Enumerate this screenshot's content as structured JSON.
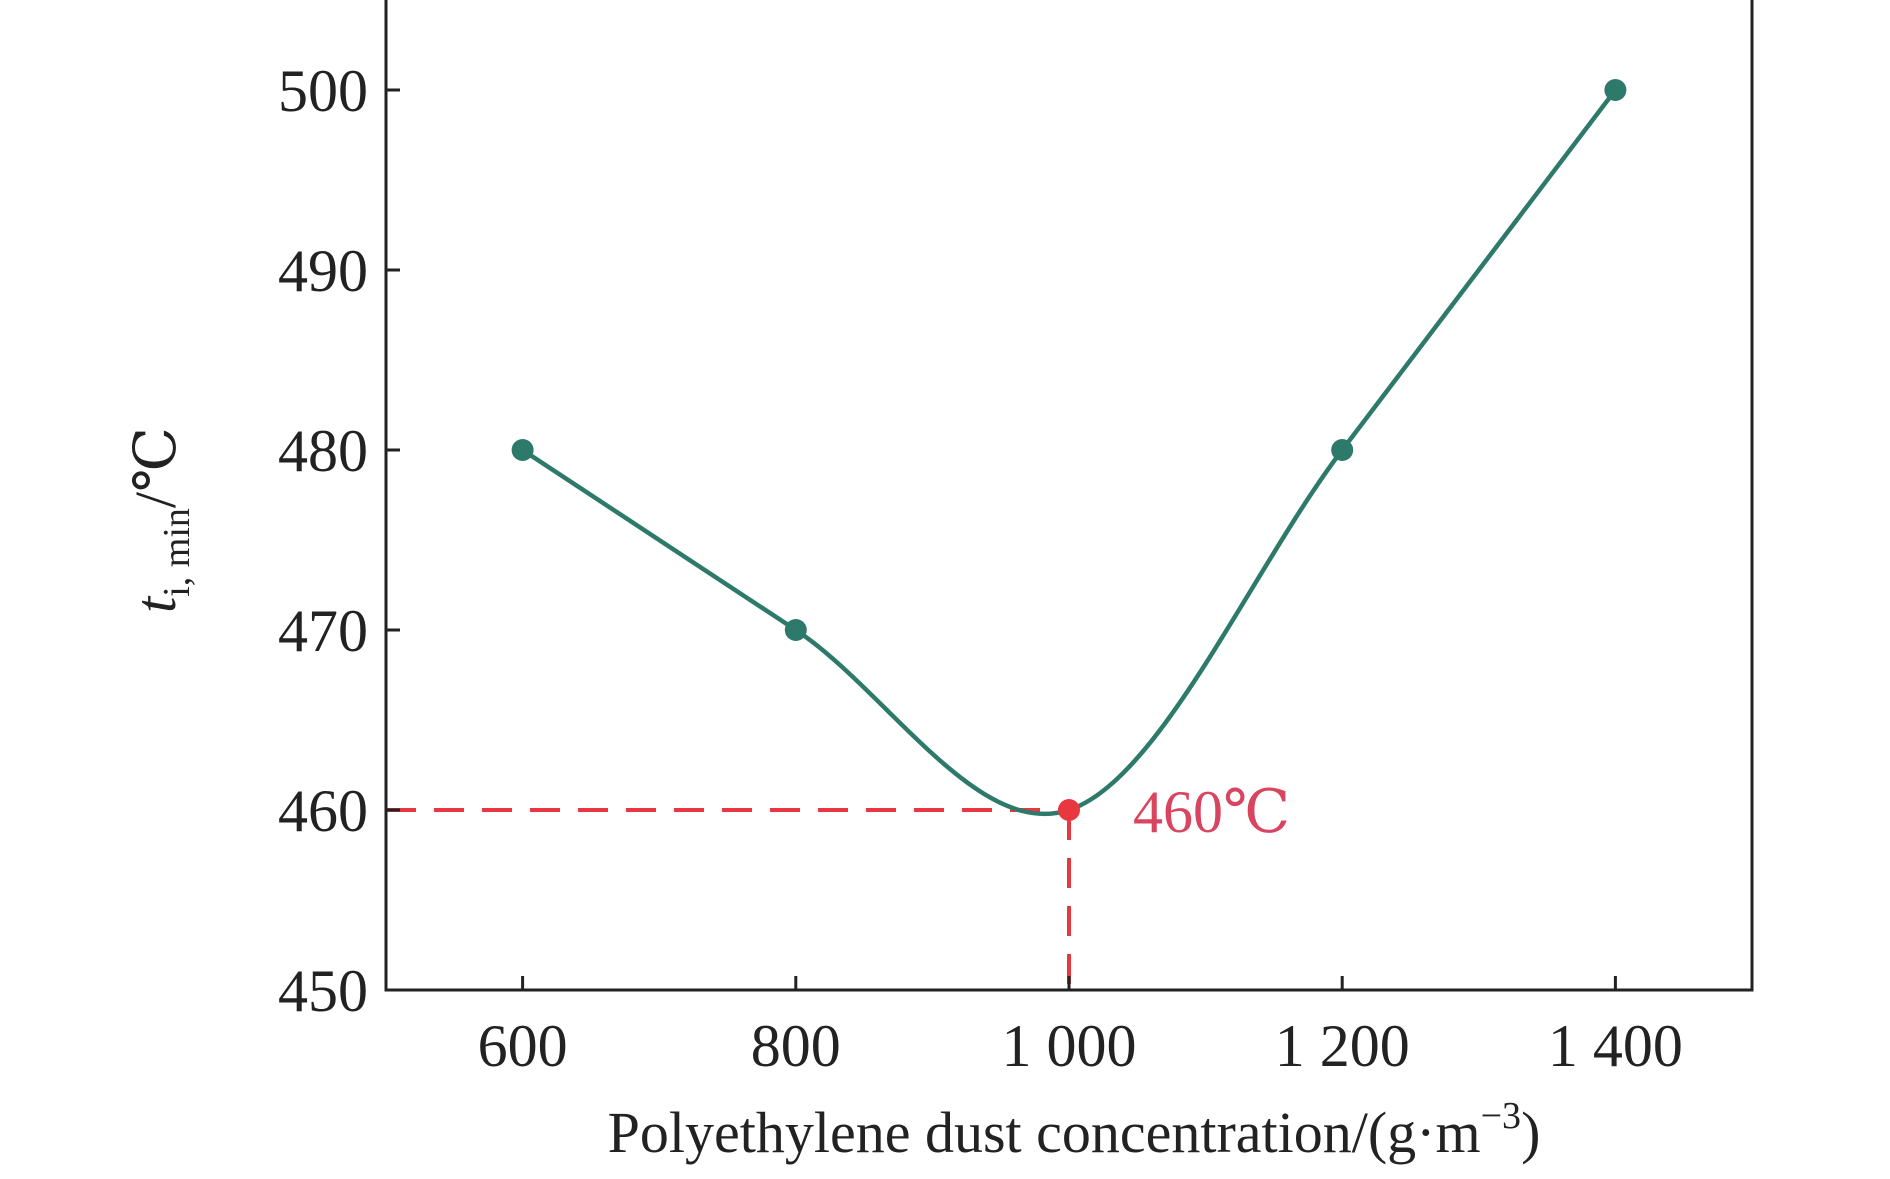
{
  "chart_data": {
    "type": "line",
    "x": [
      600,
      800,
      1000,
      1200,
      1400
    ],
    "series": [
      {
        "values": [
          480,
          470,
          460,
          480,
          500
        ],
        "color": "#2e7a6a",
        "marker": "circle"
      }
    ],
    "highlight": {
      "x": 1000,
      "y": 460,
      "label": "460℃",
      "color": "#e8373f",
      "guides": "dashed"
    },
    "xlim": [
      500,
      1500
    ],
    "ylim": [
      450,
      505
    ],
    "xticks": [
      600,
      800,
      1000,
      1200,
      1400
    ],
    "xtick_labels": [
      "600",
      "800",
      "1 000",
      "1 200",
      "1 400"
    ],
    "yticks": [
      450,
      460,
      470,
      480,
      490,
      500
    ],
    "ytick_labels": [
      "450",
      "460",
      "470",
      "480",
      "490",
      "500"
    ],
    "xlabel": {
      "main": "Polyethylene dust concentration/(g·m",
      "sup": "−3",
      "close": ")"
    },
    "ylabel": {
      "main": "t",
      "sub": "i, min",
      "unit": "/℃"
    },
    "grid": false,
    "legend": "none"
  }
}
